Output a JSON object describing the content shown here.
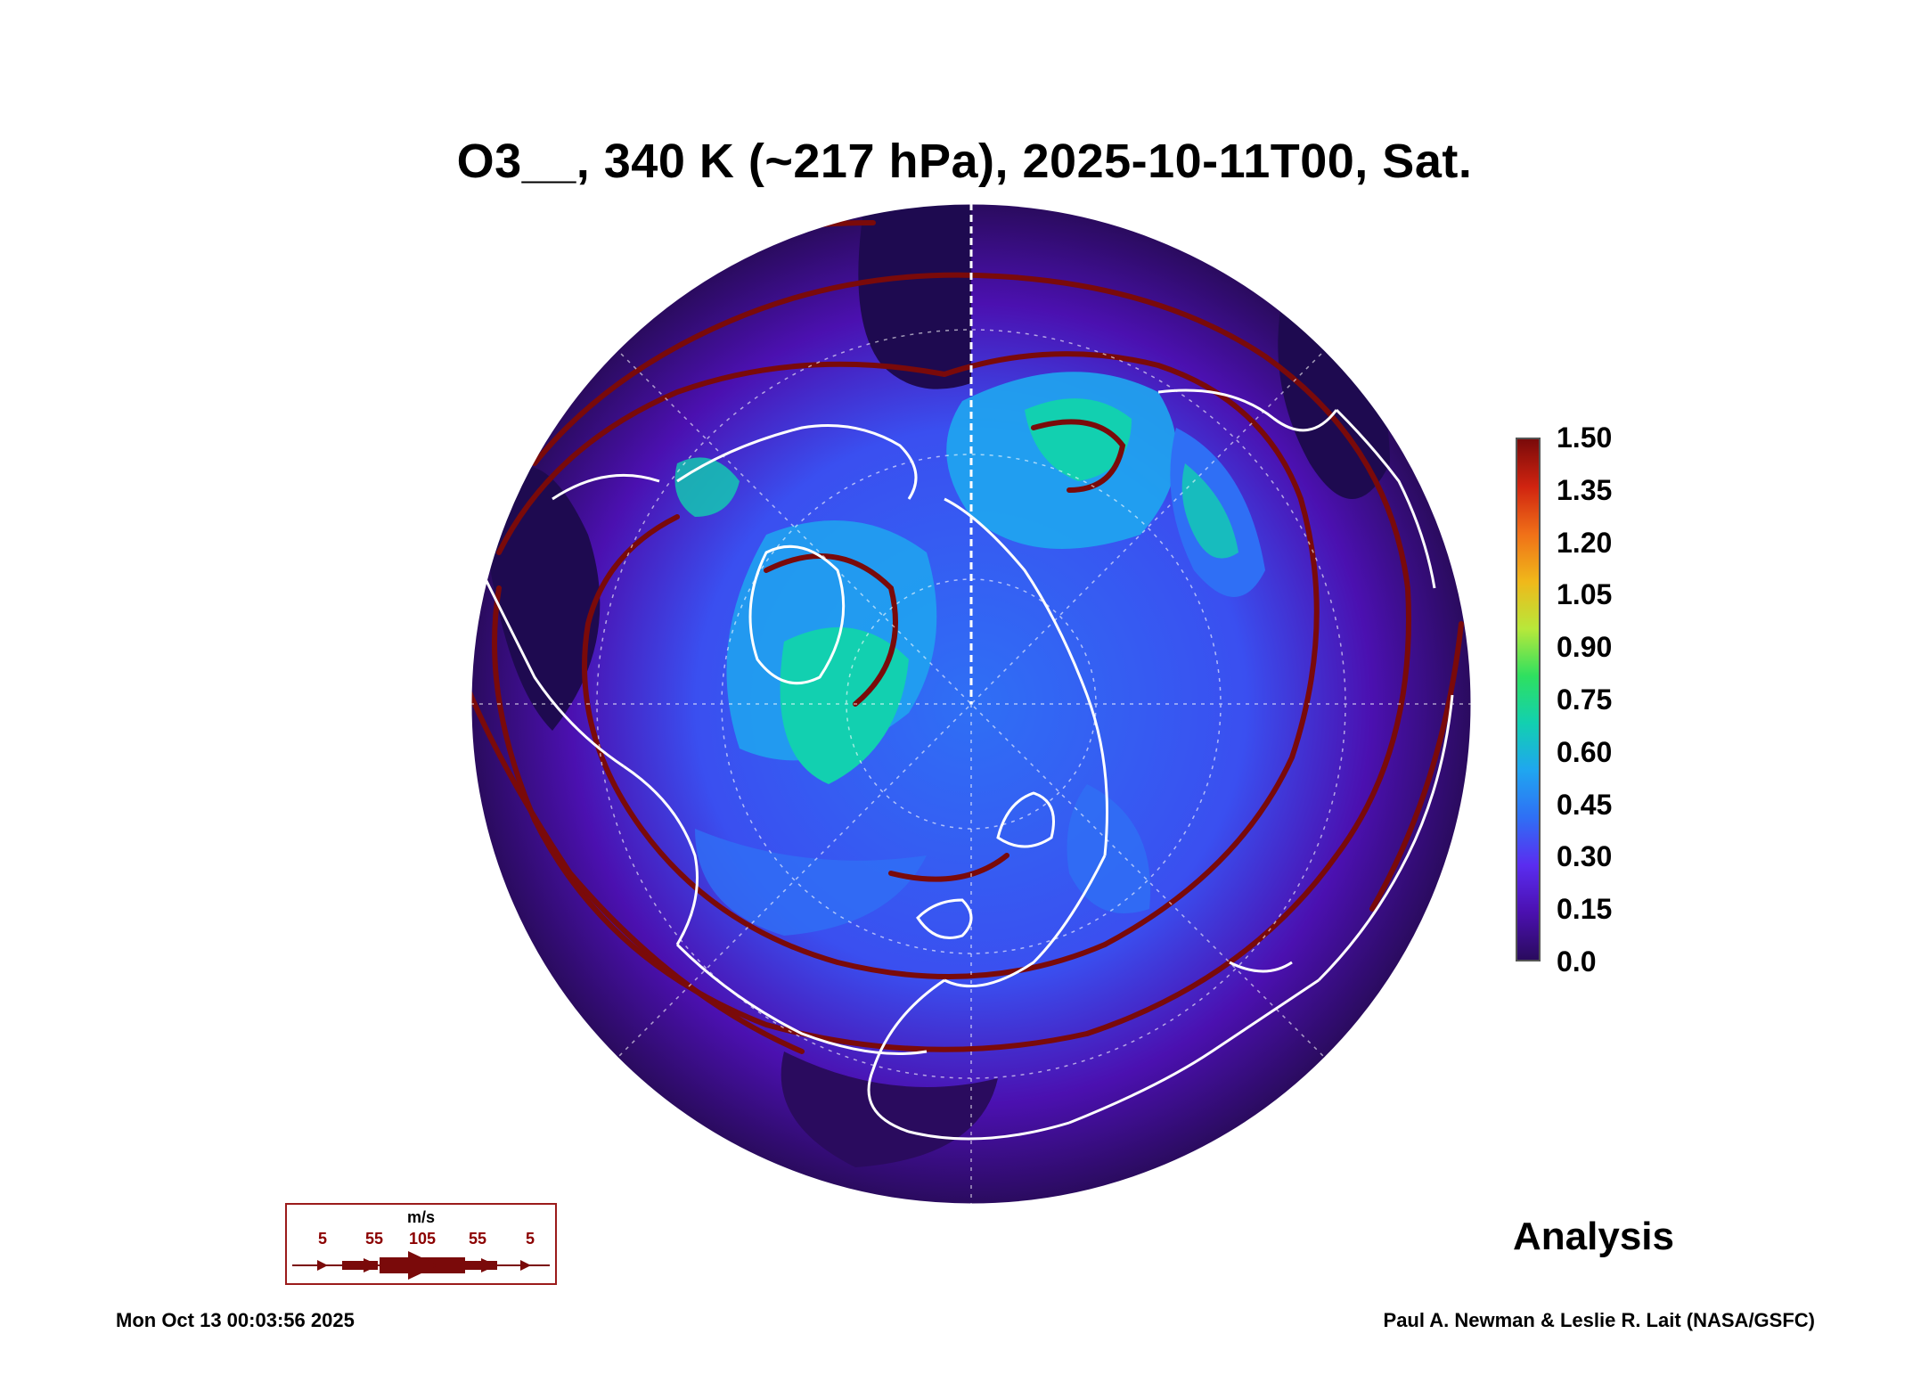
{
  "title": "O3__, 340 K (~217 hPa), 2025-10-11T00, Sat.",
  "colorbar": {
    "ticks": [
      "1.50",
      "1.35",
      "1.20",
      "1.05",
      "0.90",
      "0.75",
      "0.60",
      "0.45",
      "0.30",
      "0.15",
      "0.0"
    ],
    "colors": [
      "#2a0b5e",
      "#4b10b0",
      "#5a2df0",
      "#2f6ff5",
      "#1fa6f0",
      "#12d0b0",
      "#2ee060",
      "#b8e83a",
      "#f0b81a",
      "#f07018",
      "#d02410",
      "#7a0a0a"
    ]
  },
  "wind_legend": {
    "unit": "m/s",
    "labels": [
      "5",
      "55",
      "105",
      "55",
      "5"
    ]
  },
  "label_analysis": "Analysis",
  "timestamp": "Mon Oct 13 00:03:56 2025",
  "credit": "Paul A. Newman & Leslie R. Lait (NASA/GSFC)",
  "colors": {
    "streamline": "#7a0a0a",
    "coastline": "#ffffff",
    "outer_ring": "#1e0a50"
  }
}
